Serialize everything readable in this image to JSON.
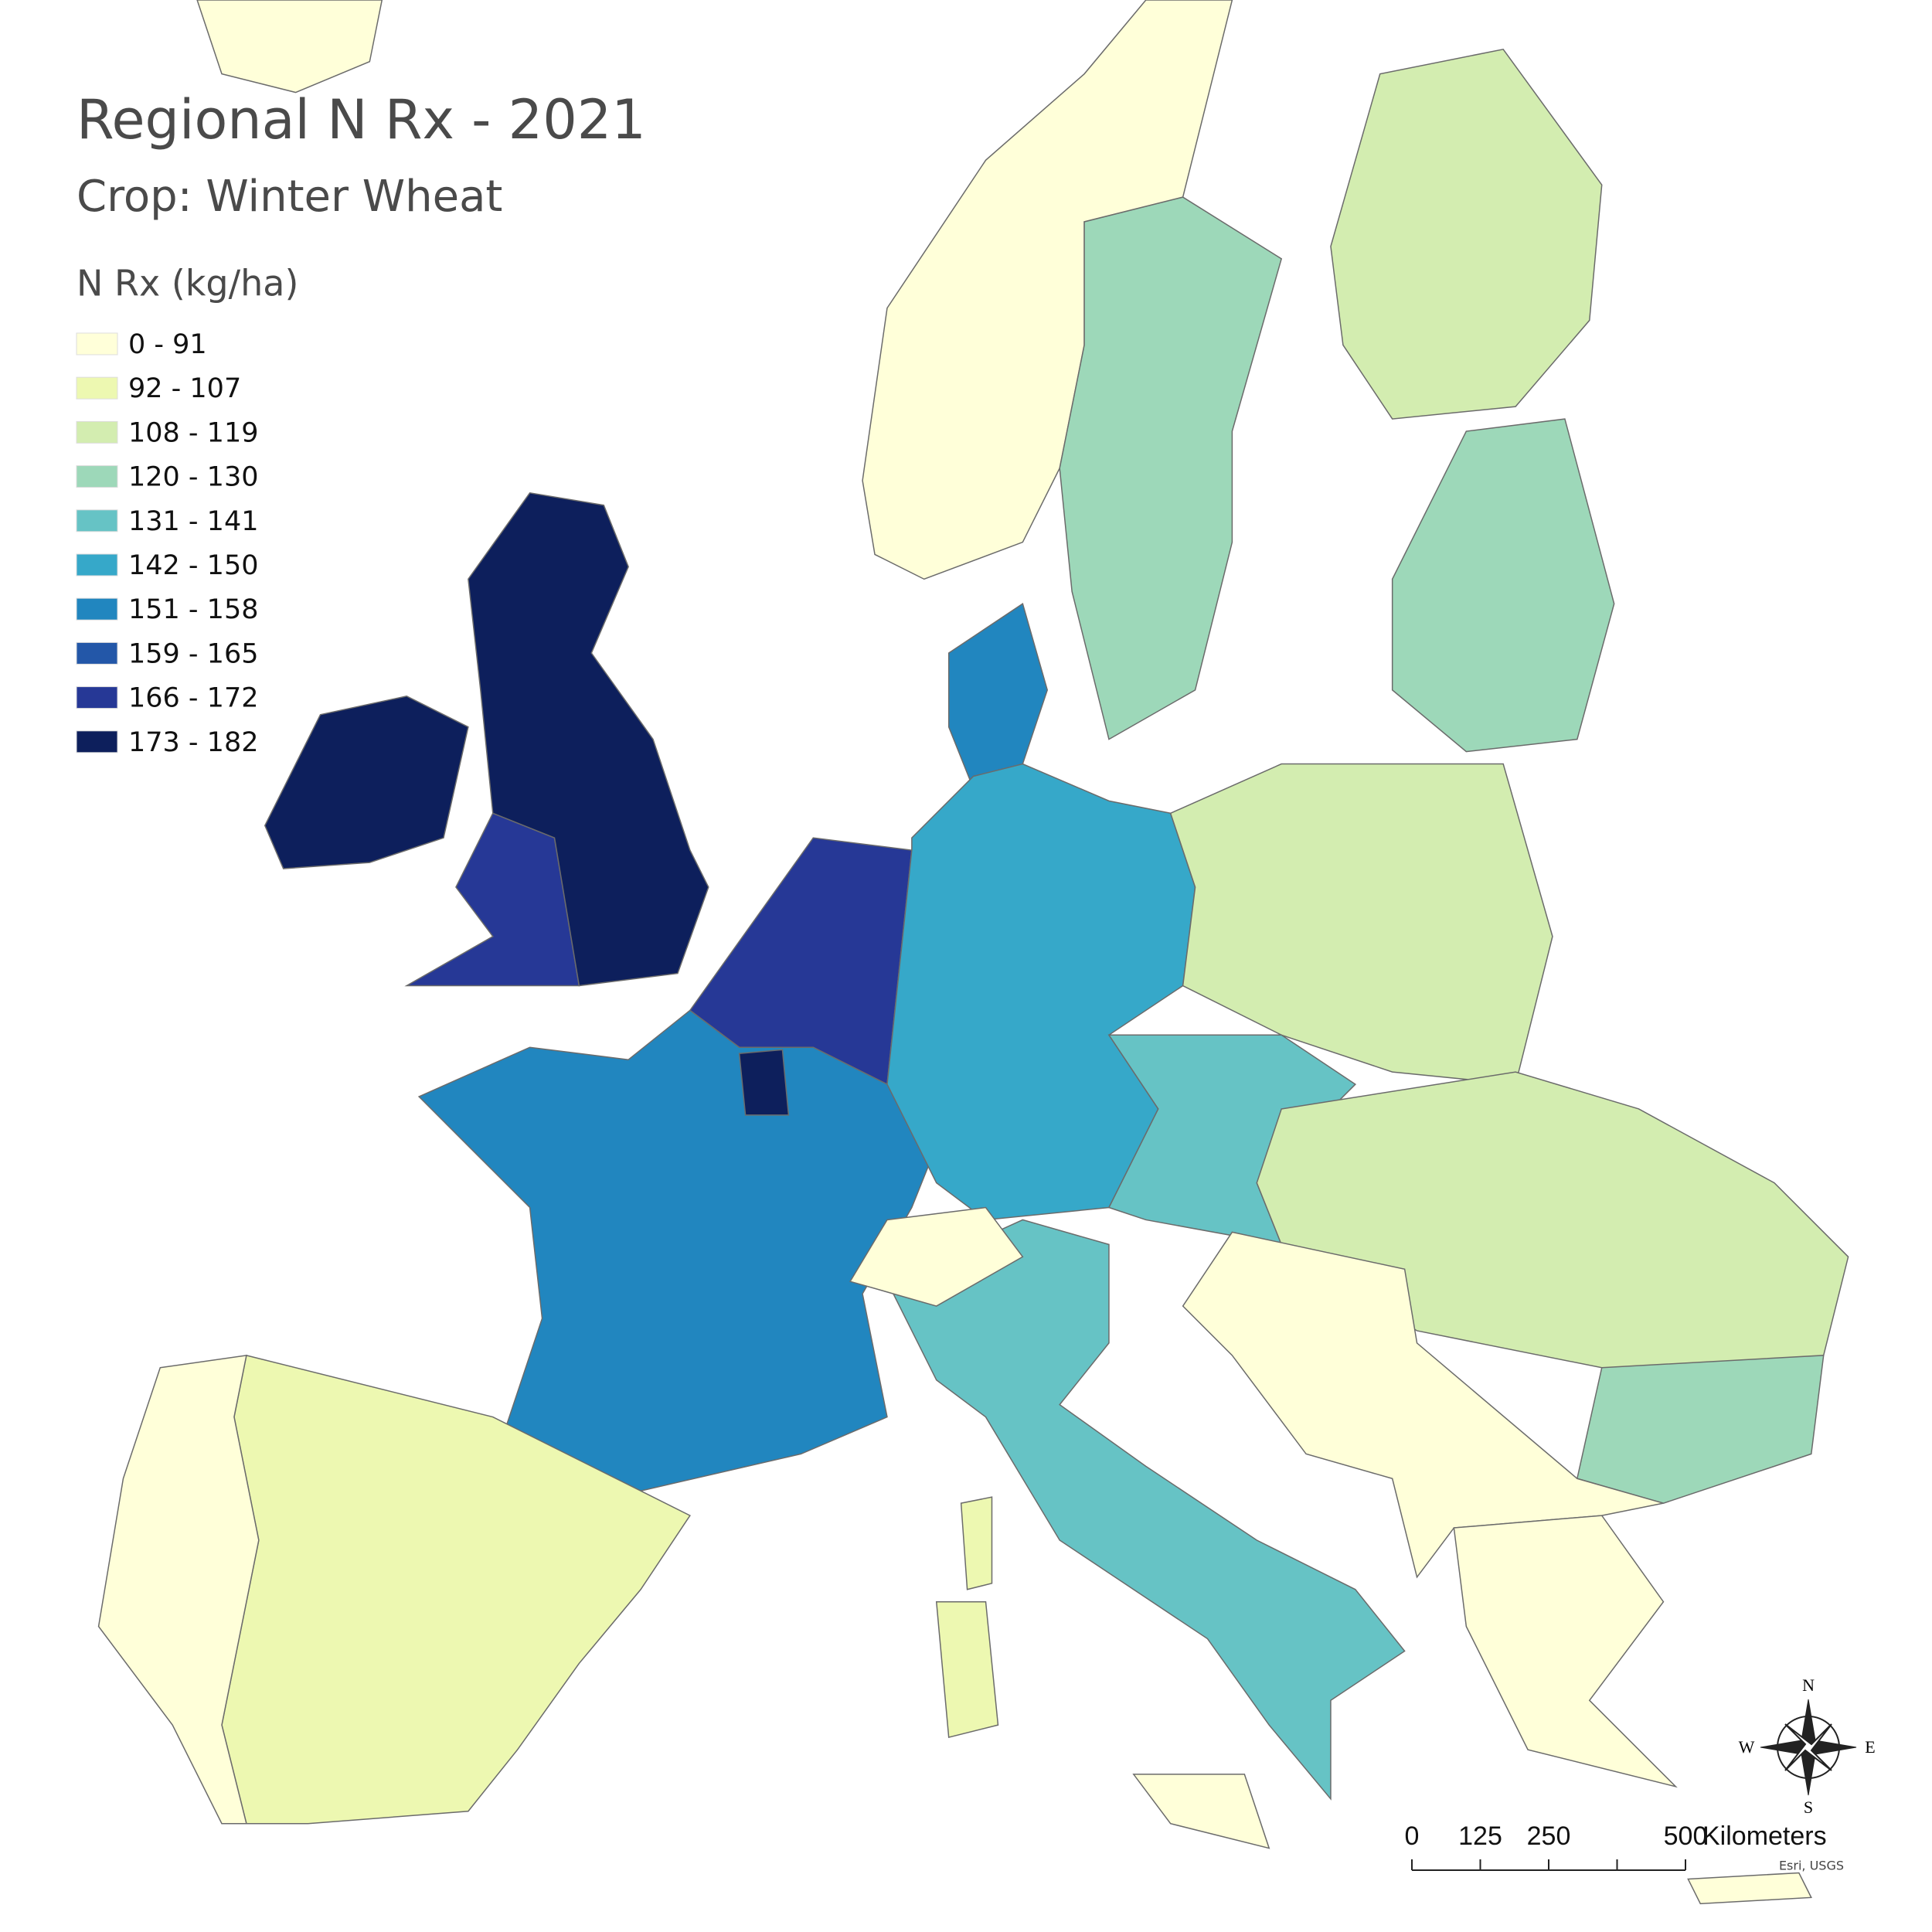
{
  "header": {
    "title": "Regional N Rx - 2021",
    "subtitle": "Crop: Winter Wheat"
  },
  "legend": {
    "title": "N Rx (kg/ha)",
    "items": [
      {
        "label": "0 - 91",
        "color": "#ffffd9"
      },
      {
        "label": "92 - 107",
        "color": "#edf8b1"
      },
      {
        "label": "108 - 119",
        "color": "#d3edb0"
      },
      {
        "label": "120 - 130",
        "color": "#9dd8b9"
      },
      {
        "label": "131 - 141",
        "color": "#66c3c5"
      },
      {
        "label": "142 - 150",
        "color": "#36a8c9"
      },
      {
        "label": "151 - 158",
        "color": "#2186bf"
      },
      {
        "label": "159 - 165",
        "color": "#2357a8"
      },
      {
        "label": "166 - 172",
        "color": "#263896"
      },
      {
        "label": "173 - 182",
        "color": "#0d1f5c"
      }
    ]
  },
  "scale_bar": {
    "ticks": [
      0,
      125,
      250,
      500
    ],
    "unit": "Kilometers"
  },
  "compass": {
    "n": "N",
    "e": "E",
    "s": "S",
    "w": "W"
  },
  "attribution": "Esri, USGS"
}
